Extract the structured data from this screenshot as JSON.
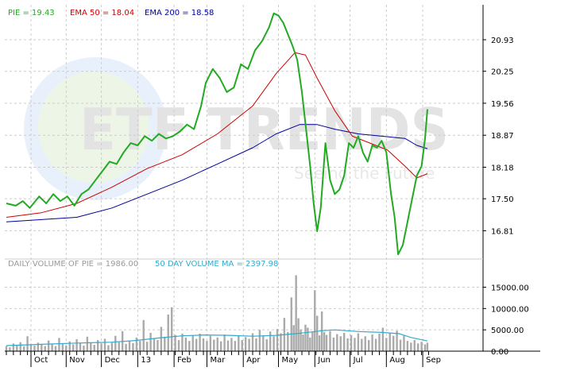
{
  "watermark": {
    "brand": "ETF TRENDS",
    "tagline": "Seeing the Future"
  },
  "price_legend": {
    "symbol_value": "PIE = 19.43",
    "ema50": "EMA 50 = 18.04",
    "ema200": "EMA 200 = 18.58"
  },
  "volume_legend": {
    "daily": "DAILY VOLUME OF PIE = 1986.00",
    "ma": "50 DAY VOLUME MA = 2397.98"
  },
  "colors": {
    "price": "#22aa22",
    "ema50": "#cc0000",
    "ema200": "#000099",
    "volume_bar": "#aaaaaa",
    "volume_ma": "#33aacc",
    "grid": "#cccccc",
    "price_legend_text": "#22aa22",
    "ema50_legend_text": "#cc0000",
    "ema200_legend_text": "#000099",
    "volume_legend_text": "#999999",
    "volume_ma_legend_text": "#33aacc"
  },
  "chart_data": [
    {
      "type": "line",
      "panel": "price",
      "y_ticks": [
        "20.93",
        "20.25",
        "19.56",
        "18.87",
        "18.18",
        "17.50",
        "16.81"
      ],
      "y_tick_values": [
        20.93,
        20.25,
        19.56,
        18.87,
        18.18,
        17.5,
        16.81
      ],
      "ylim": [
        16.2,
        21.65
      ],
      "x_labels": [
        "Oct",
        "Nov",
        "Dec",
        "13",
        "Feb",
        "Mar",
        "Apr",
        "May",
        "Jun",
        "Jul",
        "Aug",
        "Sep"
      ],
      "x_label_days": [
        21,
        51,
        81,
        112,
        143,
        171,
        202,
        232,
        263,
        293,
        324,
        355
      ],
      "x_range": [
        0,
        380
      ],
      "grid": true,
      "series": [
        {
          "name": "PIE",
          "points": [
            [
              0,
              17.4
            ],
            [
              8,
              17.35
            ],
            [
              14,
              17.45
            ],
            [
              20,
              17.3
            ],
            [
              28,
              17.55
            ],
            [
              34,
              17.4
            ],
            [
              40,
              17.6
            ],
            [
              46,
              17.45
            ],
            [
              52,
              17.55
            ],
            [
              58,
              17.35
            ],
            [
              64,
              17.6
            ],
            [
              70,
              17.7
            ],
            [
              76,
              17.9
            ],
            [
              82,
              18.1
            ],
            [
              88,
              18.3
            ],
            [
              94,
              18.25
            ],
            [
              100,
              18.5
            ],
            [
              106,
              18.7
            ],
            [
              112,
              18.65
            ],
            [
              118,
              18.85
            ],
            [
              124,
              18.75
            ],
            [
              130,
              18.9
            ],
            [
              136,
              18.8
            ],
            [
              142,
              18.85
            ],
            [
              148,
              18.95
            ],
            [
              154,
              19.1
            ],
            [
              160,
              19.0
            ],
            [
              166,
              19.5
            ],
            [
              170,
              20.0
            ],
            [
              176,
              20.3
            ],
            [
              182,
              20.1
            ],
            [
              188,
              19.8
            ],
            [
              194,
              19.9
            ],
            [
              200,
              20.4
            ],
            [
              206,
              20.3
            ],
            [
              212,
              20.7
            ],
            [
              218,
              20.9
            ],
            [
              224,
              21.2
            ],
            [
              228,
              21.5
            ],
            [
              232,
              21.45
            ],
            [
              236,
              21.3
            ],
            [
              240,
              21.05
            ],
            [
              244,
              20.8
            ],
            [
              248,
              20.5
            ],
            [
              252,
              19.8
            ],
            [
              256,
              18.9
            ],
            [
              259,
              18.2
            ],
            [
              262,
              17.4
            ],
            [
              265,
              16.8
            ],
            [
              268,
              17.3
            ],
            [
              272,
              18.7
            ],
            [
              276,
              17.9
            ],
            [
              280,
              17.6
            ],
            [
              284,
              17.7
            ],
            [
              288,
              18.0
            ],
            [
              292,
              18.7
            ],
            [
              296,
              18.6
            ],
            [
              300,
              18.85
            ],
            [
              304,
              18.5
            ],
            [
              308,
              18.3
            ],
            [
              312,
              18.65
            ],
            [
              316,
              18.6
            ],
            [
              320,
              18.75
            ],
            [
              324,
              18.5
            ],
            [
              328,
              17.6
            ],
            [
              331,
              17.1
            ],
            [
              334,
              16.3
            ],
            [
              338,
              16.5
            ],
            [
              342,
              17.0
            ],
            [
              346,
              17.5
            ],
            [
              350,
              18.0
            ],
            [
              354,
              18.2
            ],
            [
              357,
              18.8
            ],
            [
              359,
              19.43
            ]
          ]
        },
        {
          "name": "EMA 50",
          "points": [
            [
              0,
              17.1
            ],
            [
              30,
              17.2
            ],
            [
              60,
              17.4
            ],
            [
              90,
              17.75
            ],
            [
              120,
              18.15
            ],
            [
              150,
              18.45
            ],
            [
              180,
              18.9
            ],
            [
              210,
              19.5
            ],
            [
              230,
              20.2
            ],
            [
              246,
              20.65
            ],
            [
              255,
              20.6
            ],
            [
              265,
              20.1
            ],
            [
              280,
              19.4
            ],
            [
              295,
              18.85
            ],
            [
              310,
              18.7
            ],
            [
              325,
              18.55
            ],
            [
              340,
              18.2
            ],
            [
              350,
              17.95
            ],
            [
              359,
              18.04
            ]
          ]
        },
        {
          "name": "EMA 200",
          "points": [
            [
              0,
              17.0
            ],
            [
              30,
              17.05
            ],
            [
              60,
              17.1
            ],
            [
              90,
              17.3
            ],
            [
              120,
              17.6
            ],
            [
              150,
              17.9
            ],
            [
              180,
              18.25
            ],
            [
              210,
              18.6
            ],
            [
              230,
              18.9
            ],
            [
              250,
              19.1
            ],
            [
              265,
              19.1
            ],
            [
              280,
              19.0
            ],
            [
              300,
              18.9
            ],
            [
              320,
              18.85
            ],
            [
              340,
              18.8
            ],
            [
              350,
              18.65
            ],
            [
              359,
              18.58
            ]
          ]
        }
      ]
    },
    {
      "type": "bar",
      "panel": "volume",
      "y_ticks": [
        "15000.00",
        "10000.00",
        "5000.00",
        "0.00"
      ],
      "y_tick_values": [
        15000,
        10000,
        5000,
        0
      ],
      "ylim": [
        0,
        19000
      ],
      "x_range": [
        0,
        380
      ],
      "grid": true,
      "series": [
        {
          "name": "DAILY VOLUME OF PIE",
          "volume_points": [
            [
              0,
              1200
            ],
            [
              3,
              900
            ],
            [
              6,
              1800
            ],
            [
              9,
              1400
            ],
            [
              12,
              2100
            ],
            [
              15,
              1100
            ],
            [
              18,
              3500
            ],
            [
              21,
              1500
            ],
            [
              24,
              1300
            ],
            [
              27,
              2000
            ],
            [
              30,
              1700
            ],
            [
              33,
              1200
            ],
            [
              36,
              2500
            ],
            [
              39,
              1600
            ],
            [
              42,
              1200
            ],
            [
              45,
              3100
            ],
            [
              48,
              1800
            ],
            [
              51,
              1300
            ],
            [
              54,
              2300
            ],
            [
              57,
              1600
            ],
            [
              60,
              2800
            ],
            [
              63,
              1900
            ],
            [
              66,
              1300
            ],
            [
              69,
              3400
            ],
            [
              72,
              2000
            ],
            [
              75,
              1500
            ],
            [
              78,
              2600
            ],
            [
              81,
              1800
            ],
            [
              84,
              2900
            ],
            [
              87,
              1400
            ],
            [
              90,
              2000
            ],
            [
              93,
              3600
            ],
            [
              96,
              2100
            ],
            [
              99,
              4700
            ],
            [
              102,
              1700
            ],
            [
              105,
              2500
            ],
            [
              108,
              1900
            ],
            [
              111,
              3200
            ],
            [
              114,
              2400
            ],
            [
              117,
              7300
            ],
            [
              120,
              2200
            ],
            [
              123,
              4300
            ],
            [
              126,
              3000
            ],
            [
              129,
              2600
            ],
            [
              132,
              5700
            ],
            [
              135,
              3400
            ],
            [
              138,
              8600
            ],
            [
              141,
              10300
            ],
            [
              144,
              3800
            ],
            [
              147,
              2600
            ],
            [
              150,
              4100
            ],
            [
              153,
              3200
            ],
            [
              156,
              2400
            ],
            [
              159,
              3700
            ],
            [
              162,
              2900
            ],
            [
              165,
              4100
            ],
            [
              168,
              3000
            ],
            [
              171,
              2400
            ],
            [
              174,
              3600
            ],
            [
              177,
              2700
            ],
            [
              180,
              3200
            ],
            [
              183,
              2300
            ],
            [
              186,
              3900
            ],
            [
              189,
              2500
            ],
            [
              192,
              3100
            ],
            [
              195,
              2400
            ],
            [
              198,
              3600
            ],
            [
              201,
              2600
            ],
            [
              204,
              3300
            ],
            [
              207,
              2900
            ],
            [
              210,
              4200
            ],
            [
              213,
              3000
            ],
            [
              216,
              5000
            ],
            [
              219,
              3700
            ],
            [
              222,
              2800
            ],
            [
              225,
              4600
            ],
            [
              228,
              3500
            ],
            [
              231,
              5200
            ],
            [
              234,
              4200
            ],
            [
              237,
              7800
            ],
            [
              240,
              4500
            ],
            [
              243,
              12600
            ],
            [
              245,
              6100
            ],
            [
              247,
              17800
            ],
            [
              249,
              7700
            ],
            [
              251,
              5100
            ],
            [
              253,
              3900
            ],
            [
              255,
              6200
            ],
            [
              257,
              5500
            ],
            [
              259,
              3200
            ],
            [
              261,
              4600
            ],
            [
              263,
              14300
            ],
            [
              265,
              8300
            ],
            [
              267,
              3700
            ],
            [
              269,
              9300
            ],
            [
              271,
              4500
            ],
            [
              273,
              3800
            ],
            [
              276,
              4700
            ],
            [
              279,
              3200
            ],
            [
              282,
              4000
            ],
            [
              285,
              3500
            ],
            [
              288,
              4300
            ],
            [
              291,
              3000
            ],
            [
              294,
              3800
            ],
            [
              297,
              3100
            ],
            [
              300,
              4200
            ],
            [
              303,
              2900
            ],
            [
              306,
              3500
            ],
            [
              309,
              2600
            ],
            [
              312,
              3900
            ],
            [
              315,
              2900
            ],
            [
              318,
              4100
            ],
            [
              321,
              5500
            ],
            [
              324,
              3100
            ],
            [
              327,
              4300
            ],
            [
              330,
              3600
            ],
            [
              333,
              4800
            ],
            [
              336,
              2700
            ],
            [
              339,
              3600
            ],
            [
              342,
              2400
            ],
            [
              345,
              2000
            ],
            [
              348,
              2600
            ],
            [
              351,
              1800
            ],
            [
              354,
              2200
            ],
            [
              357,
              1600
            ],
            [
              359,
              1986
            ]
          ]
        },
        {
          "name": "50 DAY VOLUME MA",
          "volume_ma_points": [
            [
              0,
              1300
            ],
            [
              30,
              1600
            ],
            [
              60,
              1900
            ],
            [
              90,
              2100
            ],
            [
              110,
              2500
            ],
            [
              130,
              3100
            ],
            [
              150,
              3600
            ],
            [
              170,
              3800
            ],
            [
              190,
              3700
            ],
            [
              210,
              3500
            ],
            [
              230,
              3700
            ],
            [
              250,
              4200
            ],
            [
              270,
              4800
            ],
            [
              280,
              5000
            ],
            [
              300,
              4600
            ],
            [
              320,
              4400
            ],
            [
              335,
              4100
            ],
            [
              345,
              3200
            ],
            [
              359,
              2398
            ]
          ]
        }
      ]
    }
  ]
}
